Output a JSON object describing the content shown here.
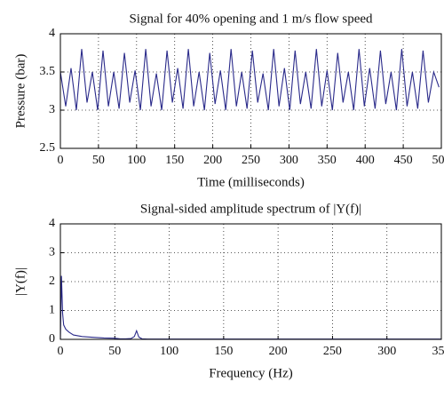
{
  "chart_data": [
    {
      "type": "line",
      "title": "Signal for 40% opening and 1 m/s flow speed",
      "x_label": "Time (milliseconds)",
      "y_label": "Pressure (bar)",
      "x": [
        0,
        7,
        14,
        21,
        28,
        35,
        42,
        49,
        56,
        63,
        70,
        77,
        84,
        91,
        98,
        105,
        112,
        119,
        126,
        133,
        140,
        147,
        154,
        161,
        168,
        175,
        182,
        189,
        196,
        203,
        210,
        217,
        224,
        231,
        238,
        245,
        252,
        259,
        266,
        273,
        280,
        287,
        294,
        301,
        308,
        315,
        322,
        329,
        336,
        343,
        350,
        357,
        364,
        371,
        378,
        385,
        392,
        399,
        406,
        413,
        420,
        427,
        434,
        441,
        448,
        455,
        462,
        469,
        476,
        483,
        490,
        497
      ],
      "values": [
        3.5,
        3.05,
        3.55,
        3.0,
        3.8,
        3.1,
        3.5,
        3.0,
        3.78,
        3.05,
        3.5,
        3.02,
        3.75,
        3.1,
        3.52,
        3.0,
        3.8,
        3.05,
        3.48,
        3.0,
        3.78,
        3.1,
        3.55,
        3.02,
        3.8,
        3.05,
        3.5,
        3.0,
        3.75,
        3.08,
        3.52,
        3.0,
        3.8,
        3.05,
        3.5,
        3.02,
        3.78,
        3.1,
        3.48,
        3.0,
        3.8,
        3.05,
        3.55,
        3.0,
        3.78,
        3.08,
        3.5,
        3.02,
        3.8,
        3.05,
        3.52,
        3.0,
        3.75,
        3.1,
        3.5,
        3.0,
        3.8,
        3.05,
        3.55,
        3.02,
        3.78,
        3.08,
        3.5,
        3.0,
        3.8,
        3.05,
        3.5,
        3.02,
        3.78,
        3.1,
        3.5,
        3.3
      ],
      "color": "#2a2a8a",
      "xlim": [
        0,
        500
      ],
      "ylim": [
        2.5,
        4
      ],
      "xticks": [
        0,
        50,
        100,
        150,
        200,
        250,
        300,
        350,
        400,
        450,
        500
      ],
      "yticks": [
        2.5,
        3,
        3.5,
        4
      ],
      "grid": true
    },
    {
      "type": "line",
      "title": "Signal-sided amplitude spectrum of |Y(f)|",
      "x_label": "Frequency (Hz)",
      "y_label": "|Y(f)|",
      "x": [
        0,
        1,
        2,
        3,
        5,
        8,
        12,
        20,
        30,
        40,
        50,
        55,
        60,
        65,
        68,
        70,
        72,
        75,
        80,
        100,
        150,
        200,
        250,
        300,
        350
      ],
      "values": [
        0,
        2.2,
        0.9,
        0.5,
        0.35,
        0.25,
        0.15,
        0.1,
        0.07,
        0.05,
        0.04,
        0.02,
        0.02,
        0.03,
        0.1,
        0.3,
        0.08,
        0.02,
        0.01,
        0.01,
        0.01,
        0.01,
        0.01,
        0.01,
        0.01
      ],
      "color": "#2a2a8a",
      "xlim": [
        0,
        350
      ],
      "ylim": [
        0,
        4
      ],
      "xticks": [
        0,
        50,
        100,
        150,
        200,
        250,
        300,
        350
      ],
      "yticks": [
        0,
        1,
        2,
        3,
        4
      ],
      "grid": true
    }
  ]
}
